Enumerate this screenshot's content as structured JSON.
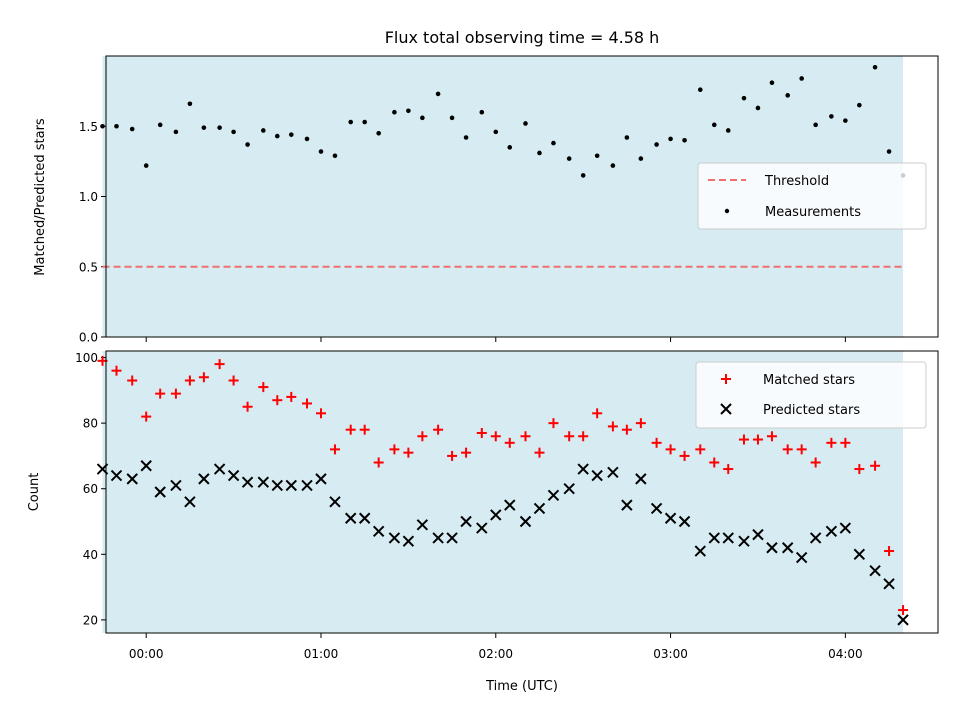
{
  "title": "Flux total observing time = 4.58 h",
  "chart_data": [
    {
      "type": "scatter",
      "panel": "top",
      "ylabel": "Matched/Predicted stars",
      "xlabel": "",
      "xlim": [
        -0.23,
        4.53
      ],
      "ylim": [
        0.0,
        2.0
      ],
      "yticks": [
        0.0,
        0.5,
        1.0,
        1.5
      ],
      "ytick_labels": [
        "0.0",
        "0.5",
        "1.0",
        "1.5"
      ],
      "grid": false,
      "legend_position": "right",
      "shaded_interval": [
        -0.25,
        4.33
      ],
      "threshold": {
        "name": "Threshold",
        "value": 0.5,
        "color": "#f07070"
      },
      "series": [
        {
          "name": "Measurements",
          "color": "#000000",
          "x": [
            -0.25,
            -0.17,
            -0.08,
            0.0,
            0.08,
            0.17,
            0.25,
            0.33,
            0.42,
            0.5,
            0.58,
            0.67,
            0.75,
            0.83,
            0.92,
            1.0,
            1.08,
            1.17,
            1.25,
            1.33,
            1.42,
            1.5,
            1.58,
            1.67,
            1.75,
            1.83,
            1.92,
            2.0,
            2.08,
            2.17,
            2.25,
            2.33,
            2.42,
            2.5,
            2.58,
            2.67,
            2.75,
            2.83,
            2.92,
            3.0,
            3.08,
            3.17,
            3.25,
            3.33,
            3.42,
            3.5,
            3.58,
            3.67,
            3.75,
            3.83,
            3.92,
            4.0,
            4.08,
            4.17,
            4.25,
            4.33
          ],
          "y": [
            1.5,
            1.5,
            1.48,
            1.22,
            1.51,
            1.46,
            1.66,
            1.49,
            1.49,
            1.46,
            1.37,
            1.47,
            1.43,
            1.44,
            1.41,
            1.32,
            1.29,
            1.53,
            1.53,
            1.45,
            1.6,
            1.61,
            1.56,
            1.73,
            1.56,
            1.42,
            1.6,
            1.46,
            1.35,
            1.52,
            1.31,
            1.38,
            1.27,
            1.15,
            1.29,
            1.22,
            1.42,
            1.27,
            1.37,
            1.41,
            1.4,
            1.76,
            1.51,
            1.47,
            1.7,
            1.63,
            1.81,
            1.72,
            1.84,
            1.51,
            1.57,
            1.54,
            1.65,
            1.92,
            1.32,
            1.15
          ]
        }
      ]
    },
    {
      "type": "scatter",
      "panel": "bottom",
      "ylabel": "Count",
      "xlabel": "Time (UTC)",
      "xlim": [
        -0.23,
        4.53
      ],
      "ylim": [
        16,
        102
      ],
      "yticks": [
        20,
        40,
        60,
        80,
        100
      ],
      "ytick_labels": [
        "20",
        "40",
        "60",
        "80",
        "100"
      ],
      "xticks": [
        0,
        1,
        2,
        3,
        4
      ],
      "xtick_labels": [
        "00:00",
        "01:00",
        "02:00",
        "03:00",
        "04:00"
      ],
      "grid": false,
      "legend_position": "top-right",
      "shaded_interval": [
        -0.25,
        4.33
      ],
      "x": [
        -0.25,
        -0.17,
        -0.08,
        0.0,
        0.08,
        0.17,
        0.25,
        0.33,
        0.42,
        0.5,
        0.58,
        0.67,
        0.75,
        0.83,
        0.92,
        1.0,
        1.08,
        1.17,
        1.25,
        1.33,
        1.42,
        1.5,
        1.58,
        1.67,
        1.75,
        1.83,
        1.92,
        2.0,
        2.08,
        2.17,
        2.25,
        2.33,
        2.42,
        2.5,
        2.58,
        2.67,
        2.75,
        2.83,
        2.92,
        3.0,
        3.08,
        3.17,
        3.25,
        3.33,
        3.42,
        3.5,
        3.58,
        3.67,
        3.75,
        3.83,
        3.92,
        4.0,
        4.08,
        4.17,
        4.25,
        4.33
      ],
      "series": [
        {
          "name": "Matched stars",
          "marker": "+",
          "color": "#ff0000",
          "values": [
            99,
            96,
            93,
            82,
            89,
            89,
            93,
            94,
            98,
            93,
            85,
            91,
            87,
            88,
            86,
            83,
            72,
            78,
            78,
            68,
            72,
            71,
            76,
            78,
            70,
            71,
            77,
            76,
            74,
            76,
            71,
            80,
            76,
            76,
            83,
            79,
            78,
            80,
            74,
            72,
            70,
            72,
            68,
            66,
            75,
            75,
            76,
            72,
            72,
            68,
            74,
            74,
            66,
            67,
            41,
            23
          ]
        },
        {
          "name": "Predicted stars",
          "marker": "x",
          "color": "#000000",
          "values": [
            66,
            64,
            63,
            67,
            59,
            61,
            56,
            63,
            66,
            64,
            62,
            62,
            61,
            61,
            61,
            63,
            56,
            51,
            51,
            47,
            45,
            44,
            49,
            45,
            45,
            50,
            48,
            52,
            55,
            50,
            54,
            58,
            60,
            66,
            64,
            65,
            55,
            63,
            54,
            51,
            50,
            41,
            45,
            45,
            44,
            46,
            42,
            42,
            39,
            45,
            47,
            48,
            40,
            35,
            31,
            20
          ]
        }
      ]
    }
  ]
}
